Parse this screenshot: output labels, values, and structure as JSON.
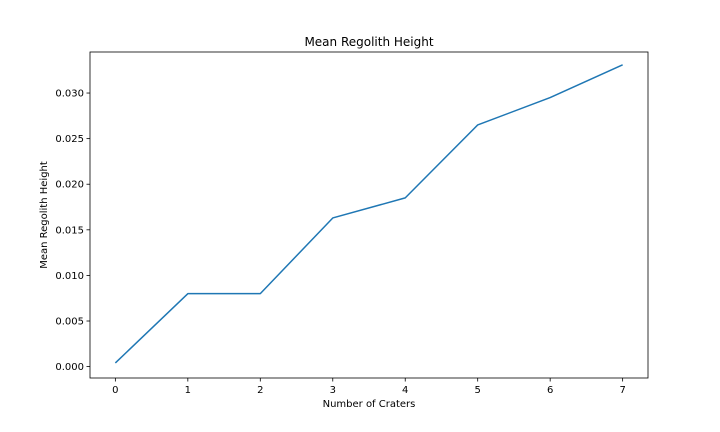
{
  "chart_data": {
    "type": "line",
    "title": "Mean Regolith Height",
    "xlabel": "Number of Craters",
    "ylabel": "Mean Regolith Height",
    "x": [
      0,
      1,
      2,
      3,
      4,
      5,
      6,
      7
    ],
    "series": [
      {
        "values": [
          0.0004,
          0.008,
          0.008,
          0.0163,
          0.0185,
          0.0265,
          0.0295,
          0.0331
        ],
        "color": "#1f77b4"
      }
    ],
    "xlim": [
      -0.35,
      7.35
    ],
    "ylim": [
      -0.00125,
      0.0345
    ],
    "xticks": [
      "0",
      "1",
      "2",
      "3",
      "4",
      "5",
      "6",
      "7"
    ],
    "yticks": [
      "0.000",
      "0.005",
      "0.010",
      "0.015",
      "0.020",
      "0.025",
      "0.030"
    ],
    "grid": false,
    "legend": "none"
  }
}
